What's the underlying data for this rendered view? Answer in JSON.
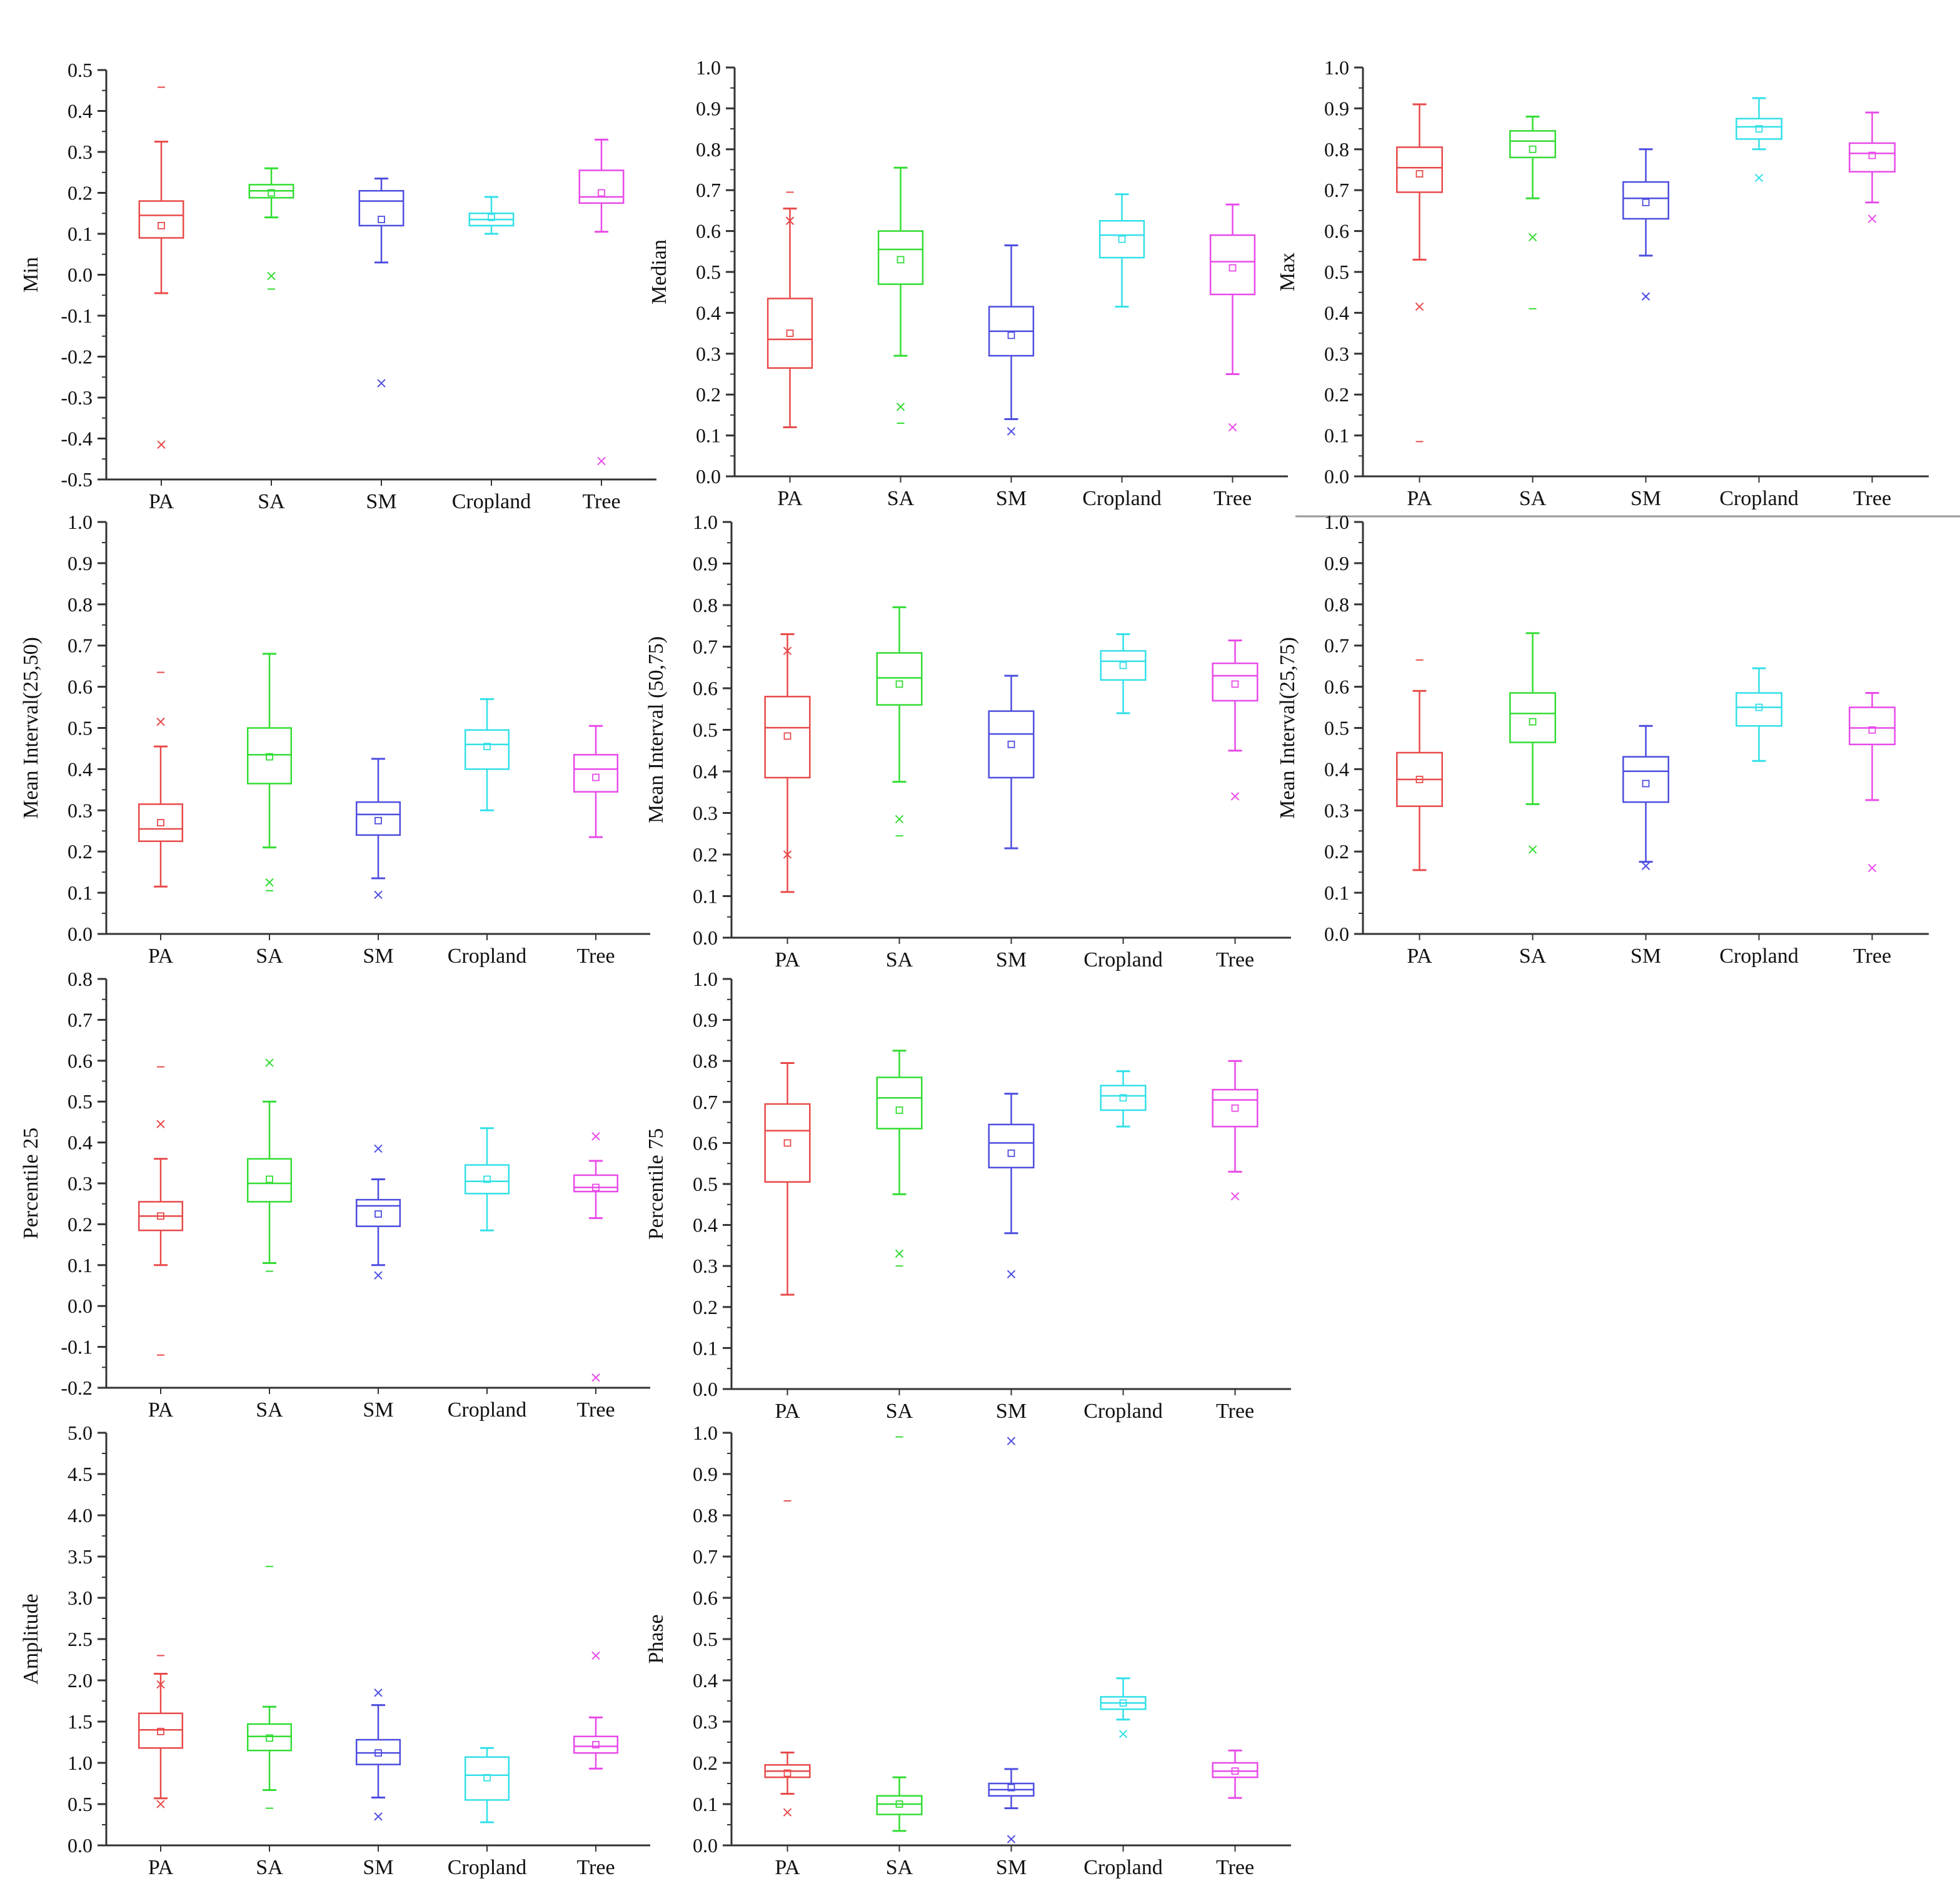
{
  "chart_data": [
    {
      "type": "box",
      "ylabel": "Min",
      "ylim": [
        -0.5,
        0.5
      ],
      "ytick_step": 0.1,
      "categories": [
        "PA",
        "SA",
        "SM",
        "Cropland",
        "Tree"
      ],
      "boxes": [
        {
          "category": "PA",
          "color": "#e84a4a",
          "q1": 0.09,
          "median": 0.145,
          "q3": 0.18,
          "whisker_low": -0.045,
          "whisker_high": 0.325,
          "mean": 0.12,
          "outliers_x": [
            -0.415
          ],
          "outliers_dash": [
            0.458
          ]
        },
        {
          "category": "SA",
          "color": "#33dd33",
          "q1": 0.188,
          "median": 0.205,
          "q3": 0.22,
          "whisker_low": 0.14,
          "whisker_high": 0.26,
          "mean": 0.2,
          "outliers_x": [
            -0.003
          ],
          "outliers_dash": [
            -0.035
          ]
        },
        {
          "category": "SM",
          "color": "#4d4de0",
          "q1": 0.12,
          "median": 0.18,
          "q3": 0.205,
          "whisker_low": 0.03,
          "whisker_high": 0.235,
          "mean": 0.135,
          "outliers_x": [
            -0.265
          ],
          "outliers_dash": []
        },
        {
          "category": "Cropland",
          "color": "#33e0e8",
          "q1": 0.12,
          "median": 0.135,
          "q3": 0.15,
          "whisker_low": 0.1,
          "whisker_high": 0.19,
          "mean": 0.14,
          "outliers_x": [],
          "outliers_dash": []
        },
        {
          "category": "Tree",
          "color": "#e84ae8",
          "q1": 0.175,
          "median": 0.19,
          "q3": 0.255,
          "whisker_low": 0.105,
          "whisker_high": 0.33,
          "mean": 0.2,
          "outliers_x": [
            -0.455
          ],
          "outliers_dash": []
        }
      ]
    },
    {
      "type": "box",
      "ylabel": "Median",
      "ylim": [
        0.0,
        1.0
      ],
      "ytick_step": 0.1,
      "categories": [
        "PA",
        "SA",
        "SM",
        "Cropland",
        "Tree"
      ],
      "boxes": [
        {
          "category": "PA",
          "color": "#e84a4a",
          "q1": 0.265,
          "median": 0.335,
          "q3": 0.435,
          "whisker_low": 0.12,
          "whisker_high": 0.655,
          "mean": 0.35,
          "outliers_x": [
            0.625
          ],
          "outliers_dash": [
            0.695
          ]
        },
        {
          "category": "SA",
          "color": "#33dd33",
          "q1": 0.47,
          "median": 0.555,
          "q3": 0.6,
          "whisker_low": 0.295,
          "whisker_high": 0.755,
          "mean": 0.53,
          "outliers_x": [
            0.17
          ],
          "outliers_dash": [
            0.13
          ]
        },
        {
          "category": "SM",
          "color": "#4d4de0",
          "q1": 0.295,
          "median": 0.355,
          "q3": 0.415,
          "whisker_low": 0.14,
          "whisker_high": 0.565,
          "mean": 0.345,
          "outliers_x": [
            0.11
          ],
          "outliers_dash": []
        },
        {
          "category": "Cropland",
          "color": "#33e0e8",
          "q1": 0.535,
          "median": 0.59,
          "q3": 0.625,
          "whisker_low": 0.415,
          "whisker_high": 0.69,
          "mean": 0.58,
          "outliers_x": [],
          "outliers_dash": []
        },
        {
          "category": "Tree",
          "color": "#e84ae8",
          "q1": 0.445,
          "median": 0.525,
          "q3": 0.59,
          "whisker_low": 0.25,
          "whisker_high": 0.665,
          "mean": 0.51,
          "outliers_x": [
            0.12
          ],
          "outliers_dash": []
        }
      ]
    },
    {
      "type": "box",
      "ylabel": "Max",
      "ylim": [
        0.0,
        1.0
      ],
      "ytick_step": 0.1,
      "categories": [
        "PA",
        "SA",
        "SM",
        "Cropland",
        "Tree"
      ],
      "boxes": [
        {
          "category": "PA",
          "color": "#e84a4a",
          "q1": 0.695,
          "median": 0.755,
          "q3": 0.805,
          "whisker_low": 0.53,
          "whisker_high": 0.91,
          "mean": 0.74,
          "outliers_x": [
            0.415
          ],
          "outliers_dash": [
            0.085
          ]
        },
        {
          "category": "SA",
          "color": "#33dd33",
          "q1": 0.78,
          "median": 0.82,
          "q3": 0.845,
          "whisker_low": 0.68,
          "whisker_high": 0.88,
          "mean": 0.8,
          "outliers_x": [
            0.585
          ],
          "outliers_dash": [
            0.41
          ]
        },
        {
          "category": "SM",
          "color": "#4d4de0",
          "q1": 0.63,
          "median": 0.68,
          "q3": 0.72,
          "whisker_low": 0.54,
          "whisker_high": 0.8,
          "mean": 0.67,
          "outliers_x": [
            0.44
          ],
          "outliers_dash": []
        },
        {
          "category": "Cropland",
          "color": "#33e0e8",
          "q1": 0.825,
          "median": 0.855,
          "q3": 0.875,
          "whisker_low": 0.8,
          "whisker_high": 0.925,
          "mean": 0.85,
          "outliers_x": [
            0.73
          ],
          "outliers_dash": []
        },
        {
          "category": "Tree",
          "color": "#e84ae8",
          "q1": 0.745,
          "median": 0.79,
          "q3": 0.815,
          "whisker_low": 0.67,
          "whisker_high": 0.89,
          "mean": 0.785,
          "outliers_x": [
            0.63
          ],
          "outliers_dash": []
        }
      ]
    },
    {
      "type": "box",
      "ylabel": "Mean Interval(25,50)",
      "ylim": [
        0.0,
        1.0
      ],
      "ytick_step": 0.1,
      "categories": [
        "PA",
        "SA",
        "SM",
        "Cropland",
        "Tree"
      ],
      "boxes": [
        {
          "category": "PA",
          "color": "#e84a4a",
          "q1": 0.225,
          "median": 0.255,
          "q3": 0.315,
          "whisker_low": 0.115,
          "whisker_high": 0.455,
          "mean": 0.27,
          "outliers_x": [
            0.515
          ],
          "outliers_dash": [
            0.635
          ]
        },
        {
          "category": "SA",
          "color": "#33dd33",
          "q1": 0.365,
          "median": 0.435,
          "q3": 0.5,
          "whisker_low": 0.21,
          "whisker_high": 0.68,
          "mean": 0.43,
          "outliers_x": [
            0.125
          ],
          "outliers_dash": [
            0.105
          ]
        },
        {
          "category": "SM",
          "color": "#4d4de0",
          "q1": 0.24,
          "median": 0.29,
          "q3": 0.32,
          "whisker_low": 0.135,
          "whisker_high": 0.425,
          "mean": 0.275,
          "outliers_x": [
            0.095
          ],
          "outliers_dash": []
        },
        {
          "category": "Cropland",
          "color": "#33e0e8",
          "q1": 0.4,
          "median": 0.46,
          "q3": 0.495,
          "whisker_low": 0.3,
          "whisker_high": 0.57,
          "mean": 0.455,
          "outliers_x": [],
          "outliers_dash": []
        },
        {
          "category": "Tree",
          "color": "#e84ae8",
          "q1": 0.345,
          "median": 0.4,
          "q3": 0.435,
          "whisker_low": 0.235,
          "whisker_high": 0.505,
          "mean": 0.38,
          "outliers_x": [],
          "outliers_dash": []
        }
      ]
    },
    {
      "type": "box",
      "ylabel": "Mean Interval (50,75)",
      "ylim": [
        0.0,
        1.0
      ],
      "ytick_step": 0.1,
      "categories": [
        "PA",
        "SA",
        "SM",
        "Cropland",
        "Tree"
      ],
      "boxes": [
        {
          "category": "PA",
          "color": "#e84a4a",
          "q1": 0.385,
          "median": 0.505,
          "q3": 0.58,
          "whisker_low": 0.11,
          "whisker_high": 0.73,
          "mean": 0.485,
          "outliers_x": [
            0.2,
            0.69
          ],
          "outliers_dash": []
        },
        {
          "category": "SA",
          "color": "#33dd33",
          "q1": 0.56,
          "median": 0.625,
          "q3": 0.685,
          "whisker_low": 0.375,
          "whisker_high": 0.795,
          "mean": 0.61,
          "outliers_x": [
            0.285
          ],
          "outliers_dash": [
            0.245
          ]
        },
        {
          "category": "SM",
          "color": "#4d4de0",
          "q1": 0.385,
          "median": 0.49,
          "q3": 0.545,
          "whisker_low": 0.215,
          "whisker_high": 0.63,
          "mean": 0.465,
          "outliers_x": [],
          "outliers_dash": []
        },
        {
          "category": "Cropland",
          "color": "#33e0e8",
          "q1": 0.62,
          "median": 0.665,
          "q3": 0.69,
          "whisker_low": 0.54,
          "whisker_high": 0.73,
          "mean": 0.655,
          "outliers_x": [],
          "outliers_dash": []
        },
        {
          "category": "Tree",
          "color": "#e84ae8",
          "q1": 0.57,
          "median": 0.63,
          "q3": 0.66,
          "whisker_low": 0.45,
          "whisker_high": 0.715,
          "mean": 0.61,
          "outliers_x": [
            0.34
          ],
          "outliers_dash": []
        }
      ]
    },
    {
      "type": "box",
      "ylabel": "Mean Interval(25,75)",
      "ylim": [
        0.0,
        1.0
      ],
      "ytick_step": 0.1,
      "categories": [
        "PA",
        "SA",
        "SM",
        "Cropland",
        "Tree"
      ],
      "boxes": [
        {
          "category": "PA",
          "color": "#e84a4a",
          "q1": 0.31,
          "median": 0.375,
          "q3": 0.44,
          "whisker_low": 0.155,
          "whisker_high": 0.59,
          "mean": 0.375,
          "outliers_x": [],
          "outliers_dash": [
            0.665
          ]
        },
        {
          "category": "SA",
          "color": "#33dd33",
          "q1": 0.465,
          "median": 0.535,
          "q3": 0.585,
          "whisker_low": 0.315,
          "whisker_high": 0.73,
          "mean": 0.515,
          "outliers_x": [
            0.205
          ],
          "outliers_dash": []
        },
        {
          "category": "SM",
          "color": "#4d4de0",
          "q1": 0.32,
          "median": 0.395,
          "q3": 0.43,
          "whisker_low": 0.175,
          "whisker_high": 0.505,
          "mean": 0.365,
          "outliers_x": [
            0.165
          ],
          "outliers_dash": []
        },
        {
          "category": "Cropland",
          "color": "#33e0e8",
          "q1": 0.505,
          "median": 0.55,
          "q3": 0.585,
          "whisker_low": 0.42,
          "whisker_high": 0.645,
          "mean": 0.55,
          "outliers_x": [],
          "outliers_dash": []
        },
        {
          "category": "Tree",
          "color": "#e84ae8",
          "q1": 0.46,
          "median": 0.5,
          "q3": 0.55,
          "whisker_low": 0.325,
          "whisker_high": 0.585,
          "mean": 0.495,
          "outliers_x": [
            0.16
          ],
          "outliers_dash": []
        }
      ]
    },
    {
      "type": "box",
      "ylabel": "Percentile 25",
      "ylim": [
        -0.2,
        0.8
      ],
      "ytick_step": 0.1,
      "categories": [
        "PA",
        "SA",
        "SM",
        "Cropland",
        "Tree"
      ],
      "boxes": [
        {
          "category": "PA",
          "color": "#e84a4a",
          "q1": 0.185,
          "median": 0.22,
          "q3": 0.255,
          "whisker_low": 0.1,
          "whisker_high": 0.36,
          "mean": 0.22,
          "outliers_x": [
            0.445
          ],
          "outliers_dash": [
            0.585,
            -0.12
          ]
        },
        {
          "category": "SA",
          "color": "#33dd33",
          "q1": 0.255,
          "median": 0.3,
          "q3": 0.36,
          "whisker_low": 0.105,
          "whisker_high": 0.5,
          "mean": 0.31,
          "outliers_x": [
            0.595
          ],
          "outliers_dash": [
            0.085
          ]
        },
        {
          "category": "SM",
          "color": "#4d4de0",
          "q1": 0.195,
          "median": 0.245,
          "q3": 0.26,
          "whisker_low": 0.1,
          "whisker_high": 0.31,
          "mean": 0.225,
          "outliers_x": [
            0.385,
            0.075
          ],
          "outliers_dash": []
        },
        {
          "category": "Cropland",
          "color": "#33e0e8",
          "q1": 0.275,
          "median": 0.305,
          "q3": 0.345,
          "whisker_low": 0.185,
          "whisker_high": 0.435,
          "mean": 0.31,
          "outliers_x": [],
          "outliers_dash": []
        },
        {
          "category": "Tree",
          "color": "#e84ae8",
          "q1": 0.28,
          "median": 0.29,
          "q3": 0.32,
          "whisker_low": 0.215,
          "whisker_high": 0.355,
          "mean": 0.29,
          "outliers_x": [
            0.415,
            -0.175
          ],
          "outliers_dash": []
        }
      ]
    },
    {
      "type": "box",
      "ylabel": "Percentile 75",
      "ylim": [
        0.0,
        1.0
      ],
      "ytick_step": 0.1,
      "categories": [
        "PA",
        "SA",
        "SM",
        "Cropland",
        "Tree"
      ],
      "boxes": [
        {
          "category": "PA",
          "color": "#e84a4a",
          "q1": 0.505,
          "median": 0.63,
          "q3": 0.695,
          "whisker_low": 0.23,
          "whisker_high": 0.795,
          "mean": 0.6,
          "outliers_x": [],
          "outliers_dash": []
        },
        {
          "category": "SA",
          "color": "#33dd33",
          "q1": 0.635,
          "median": 0.71,
          "q3": 0.76,
          "whisker_low": 0.475,
          "whisker_high": 0.825,
          "mean": 0.68,
          "outliers_x": [
            0.33
          ],
          "outliers_dash": [
            0.3
          ]
        },
        {
          "category": "SM",
          "color": "#4d4de0",
          "q1": 0.54,
          "median": 0.6,
          "q3": 0.645,
          "whisker_low": 0.38,
          "whisker_high": 0.72,
          "mean": 0.575,
          "outliers_x": [
            0.28
          ],
          "outliers_dash": []
        },
        {
          "category": "Cropland",
          "color": "#33e0e8",
          "q1": 0.68,
          "median": 0.715,
          "q3": 0.74,
          "whisker_low": 0.64,
          "whisker_high": 0.775,
          "mean": 0.71,
          "outliers_x": [],
          "outliers_dash": []
        },
        {
          "category": "Tree",
          "color": "#e84ae8",
          "q1": 0.64,
          "median": 0.705,
          "q3": 0.73,
          "whisker_low": 0.53,
          "whisker_high": 0.8,
          "mean": 0.685,
          "outliers_x": [
            0.47
          ],
          "outliers_dash": []
        }
      ]
    },
    {
      "type": "box",
      "ylabel": "Amplitude",
      "ylim": [
        0.0,
        5.0
      ],
      "ytick_step": 0.5,
      "categories": [
        "PA",
        "SA",
        "SM",
        "Cropland",
        "Tree"
      ],
      "boxes": [
        {
          "category": "PA",
          "color": "#e84a4a",
          "q1": 1.18,
          "median": 1.4,
          "q3": 1.6,
          "whisker_low": 0.57,
          "whisker_high": 2.08,
          "mean": 1.38,
          "outliers_x": [
            0.5,
            1.95
          ],
          "outliers_dash": [
            2.3
          ]
        },
        {
          "category": "SA",
          "color": "#33dd33",
          "q1": 1.15,
          "median": 1.32,
          "q3": 1.47,
          "whisker_low": 0.67,
          "whisker_high": 1.68,
          "mean": 1.3,
          "outliers_x": [],
          "outliers_dash": [
            3.38,
            0.45
          ]
        },
        {
          "category": "SM",
          "color": "#4d4de0",
          "q1": 0.98,
          "median": 1.12,
          "q3": 1.28,
          "whisker_low": 0.58,
          "whisker_high": 1.7,
          "mean": 1.12,
          "outliers_x": [
            1.85,
            0.35
          ],
          "outliers_dash": []
        },
        {
          "category": "Cropland",
          "color": "#33e0e8",
          "q1": 0.55,
          "median": 0.85,
          "q3": 1.07,
          "whisker_low": 0.28,
          "whisker_high": 1.18,
          "mean": 0.82,
          "outliers_x": [],
          "outliers_dash": []
        },
        {
          "category": "Tree",
          "color": "#e84ae8",
          "q1": 1.12,
          "median": 1.2,
          "q3": 1.32,
          "whisker_low": 0.93,
          "whisker_high": 1.55,
          "mean": 1.22,
          "outliers_x": [
            2.3
          ],
          "outliers_dash": []
        }
      ]
    },
    {
      "type": "box",
      "ylabel": "Phase",
      "ylim": [
        0.0,
        1.0
      ],
      "ytick_step": 0.1,
      "categories": [
        "PA",
        "SA",
        "SM",
        "Cropland",
        "Tree"
      ],
      "boxes": [
        {
          "category": "PA",
          "color": "#e84a4a",
          "q1": 0.165,
          "median": 0.18,
          "q3": 0.195,
          "whisker_low": 0.125,
          "whisker_high": 0.225,
          "mean": 0.175,
          "outliers_x": [
            0.08
          ],
          "outliers_dash": [
            0.835
          ]
        },
        {
          "category": "SA",
          "color": "#33dd33",
          "q1": 0.075,
          "median": 0.1,
          "q3": 0.12,
          "whisker_low": 0.035,
          "whisker_high": 0.165,
          "mean": 0.1,
          "outliers_x": [],
          "outliers_dash": [
            0.99
          ]
        },
        {
          "category": "SM",
          "color": "#4d4de0",
          "q1": 0.12,
          "median": 0.135,
          "q3": 0.15,
          "whisker_low": 0.09,
          "whisker_high": 0.185,
          "mean": 0.14,
          "outliers_x": [
            0.98,
            0.015
          ],
          "outliers_dash": []
        },
        {
          "category": "Cropland",
          "color": "#33e0e8",
          "q1": 0.33,
          "median": 0.345,
          "q3": 0.36,
          "whisker_low": 0.305,
          "whisker_high": 0.405,
          "mean": 0.345,
          "outliers_x": [
            0.27
          ],
          "outliers_dash": []
        },
        {
          "category": "Tree",
          "color": "#e84ae8",
          "q1": 0.165,
          "median": 0.18,
          "q3": 0.2,
          "whisker_low": 0.115,
          "whisker_high": 0.23,
          "mean": 0.18,
          "outliers_x": [],
          "outliers_dash": []
        }
      ]
    }
  ]
}
